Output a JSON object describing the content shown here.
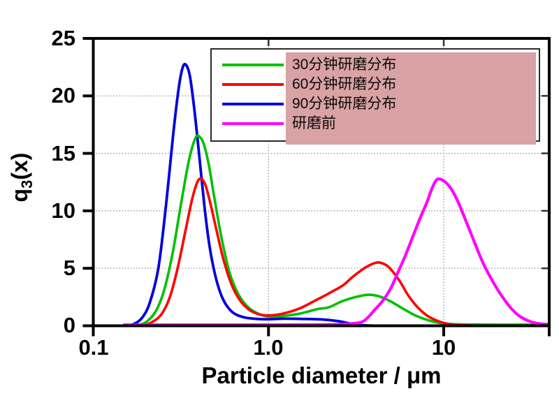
{
  "chart_data": {
    "type": "line",
    "title": "",
    "xlabel": "Particle diameter / μm",
    "ylabel": "q3(x)",
    "ylabel_parts": {
      "main": "q",
      "sub": "3",
      "rest": "(x)"
    },
    "xscale": "log",
    "xlim": [
      0.1,
      40
    ],
    "ylim": [
      0,
      25
    ],
    "xticks": [
      {
        "value": 0.1,
        "label": "0.1"
      },
      {
        "value": 1.0,
        "label": "1.0"
      },
      {
        "value": 10,
        "label": "10"
      },
      {
        "value": 40,
        "label": ""
      }
    ],
    "yticks": [
      25,
      20,
      15,
      10,
      5,
      0
    ],
    "grid": {
      "h": [
        5,
        10,
        15,
        20
      ],
      "v": [
        1.0,
        10
      ]
    },
    "grid_color": "#8a8a8a",
    "axis_color": "#000000",
    "legend": {
      "position": "top",
      "highlight_color": "#d9a2a4",
      "border_color": "#2a2a2a"
    },
    "draw_order": [
      2,
      0,
      1,
      3
    ],
    "series": [
      {
        "id": "grind-30min",
        "name": "30分钟研磨分布",
        "color": "#00c000",
        "width": 3.6,
        "points": [
          [
            0.165,
            0
          ],
          [
            0.185,
            0.1
          ],
          [
            0.205,
            0.45
          ],
          [
            0.23,
            1.4
          ],
          [
            0.255,
            3.2
          ],
          [
            0.285,
            6.5
          ],
          [
            0.315,
            10.4
          ],
          [
            0.345,
            13.8
          ],
          [
            0.365,
            15.4
          ],
          [
            0.385,
            16.4
          ],
          [
            0.4,
            16.5
          ],
          [
            0.425,
            15.9
          ],
          [
            0.455,
            14.1
          ],
          [
            0.49,
            11.2
          ],
          [
            0.54,
            7.6
          ],
          [
            0.6,
            4.6
          ],
          [
            0.67,
            2.8
          ],
          [
            0.75,
            1.75
          ],
          [
            0.86,
            1.1
          ],
          [
            1.0,
            0.8
          ],
          [
            1.2,
            0.85
          ],
          [
            1.5,
            1.05
          ],
          [
            1.9,
            1.45
          ],
          [
            2.2,
            1.6
          ],
          [
            2.6,
            2.1
          ],
          [
            3.05,
            2.45
          ],
          [
            3.7,
            2.7
          ],
          [
            4.3,
            2.55
          ],
          [
            5.0,
            2.1
          ],
          [
            6.0,
            1.4
          ],
          [
            7.0,
            0.85
          ],
          [
            8.5,
            0.4
          ],
          [
            10,
            0.2
          ],
          [
            12,
            0.13
          ],
          [
            15,
            0.11
          ],
          [
            20,
            0.1
          ],
          [
            28,
            0.1
          ],
          [
            40,
            0.12
          ]
        ]
      },
      {
        "id": "grind-60min",
        "name": "60分钟研磨分布",
        "color": "#fe0000",
        "width": 3.6,
        "points": [
          [
            0.175,
            0
          ],
          [
            0.195,
            0.08
          ],
          [
            0.215,
            0.3
          ],
          [
            0.245,
            1.0
          ],
          [
            0.275,
            2.6
          ],
          [
            0.305,
            5.2
          ],
          [
            0.335,
            8.2
          ],
          [
            0.365,
            10.9
          ],
          [
            0.39,
            12.4
          ],
          [
            0.41,
            12.8
          ],
          [
            0.435,
            12.3
          ],
          [
            0.465,
            10.7
          ],
          [
            0.505,
            8.3
          ],
          [
            0.555,
            5.7
          ],
          [
            0.615,
            3.6
          ],
          [
            0.685,
            2.25
          ],
          [
            0.775,
            1.4
          ],
          [
            0.88,
            1.0
          ],
          [
            1.0,
            0.9
          ],
          [
            1.2,
            1.05
          ],
          [
            1.5,
            1.5
          ],
          [
            1.85,
            2.2
          ],
          [
            2.2,
            2.8
          ],
          [
            2.65,
            3.5
          ],
          [
            3.05,
            4.3
          ],
          [
            3.6,
            5.1
          ],
          [
            4.15,
            5.5
          ],
          [
            4.6,
            5.35
          ],
          [
            5.0,
            4.9
          ],
          [
            5.6,
            3.9
          ],
          [
            6.3,
            2.6
          ],
          [
            7.2,
            1.5
          ],
          [
            8.2,
            0.8
          ],
          [
            9.5,
            0.35
          ],
          [
            11,
            0.12
          ],
          [
            13,
            0.04
          ],
          [
            15,
            0.01
          ],
          [
            18,
            0
          ],
          [
            40,
            0
          ]
        ]
      },
      {
        "id": "grind-90min",
        "name": "90分钟研磨分布",
        "color": "#0000dd",
        "width": 3.8,
        "points": [
          [
            0.15,
            0
          ],
          [
            0.17,
            0.15
          ],
          [
            0.19,
            0.7
          ],
          [
            0.21,
            2.0
          ],
          [
            0.235,
            5.0
          ],
          [
            0.26,
            10.5
          ],
          [
            0.285,
            16.5
          ],
          [
            0.305,
            20.3
          ],
          [
            0.32,
            22.2
          ],
          [
            0.335,
            22.75
          ],
          [
            0.355,
            21.8
          ],
          [
            0.375,
            19.2
          ],
          [
            0.4,
            15.2
          ],
          [
            0.43,
            10.5
          ],
          [
            0.46,
            7.0
          ],
          [
            0.5,
            4.2
          ],
          [
            0.55,
            2.3
          ],
          [
            0.62,
            1.2
          ],
          [
            0.72,
            0.75
          ],
          [
            0.85,
            0.6
          ],
          [
            1.0,
            0.57
          ],
          [
            1.2,
            0.62
          ],
          [
            1.5,
            0.6
          ],
          [
            2.0,
            0.55
          ],
          [
            2.5,
            0.4
          ],
          [
            3.0,
            0.15
          ],
          [
            3.4,
            0.05
          ],
          [
            3.9,
            0.01
          ],
          [
            5.0,
            0
          ],
          [
            40,
            0
          ]
        ]
      },
      {
        "id": "before-grinding",
        "name": "研磨前",
        "color": "#ff00fe",
        "width": 4.2,
        "points": [
          [
            0.15,
            0.08
          ],
          [
            0.5,
            0.08
          ],
          [
            1.0,
            0.08
          ],
          [
            1.8,
            0.09
          ],
          [
            2.5,
            0.12
          ],
          [
            3.0,
            0.2
          ],
          [
            3.5,
            0.42
          ],
          [
            4.1,
            1.5
          ],
          [
            4.5,
            2.2
          ],
          [
            5.0,
            3.3
          ],
          [
            5.5,
            4.7
          ],
          [
            6.0,
            6.0
          ],
          [
            6.6,
            7.6
          ],
          [
            7.3,
            9.3
          ],
          [
            8.0,
            10.7
          ],
          [
            8.6,
            12.0
          ],
          [
            9.2,
            12.75
          ],
          [
            10.0,
            12.6
          ],
          [
            10.8,
            12.1
          ],
          [
            11.8,
            11.1
          ],
          [
            13.0,
            9.6
          ],
          [
            14.5,
            7.8
          ],
          [
            16.5,
            5.7
          ],
          [
            18.5,
            4.2
          ],
          [
            21,
            2.8
          ],
          [
            24,
            1.6
          ],
          [
            27,
            0.85
          ],
          [
            31,
            0.38
          ],
          [
            35,
            0.18
          ],
          [
            40,
            0.12
          ]
        ]
      }
    ]
  }
}
